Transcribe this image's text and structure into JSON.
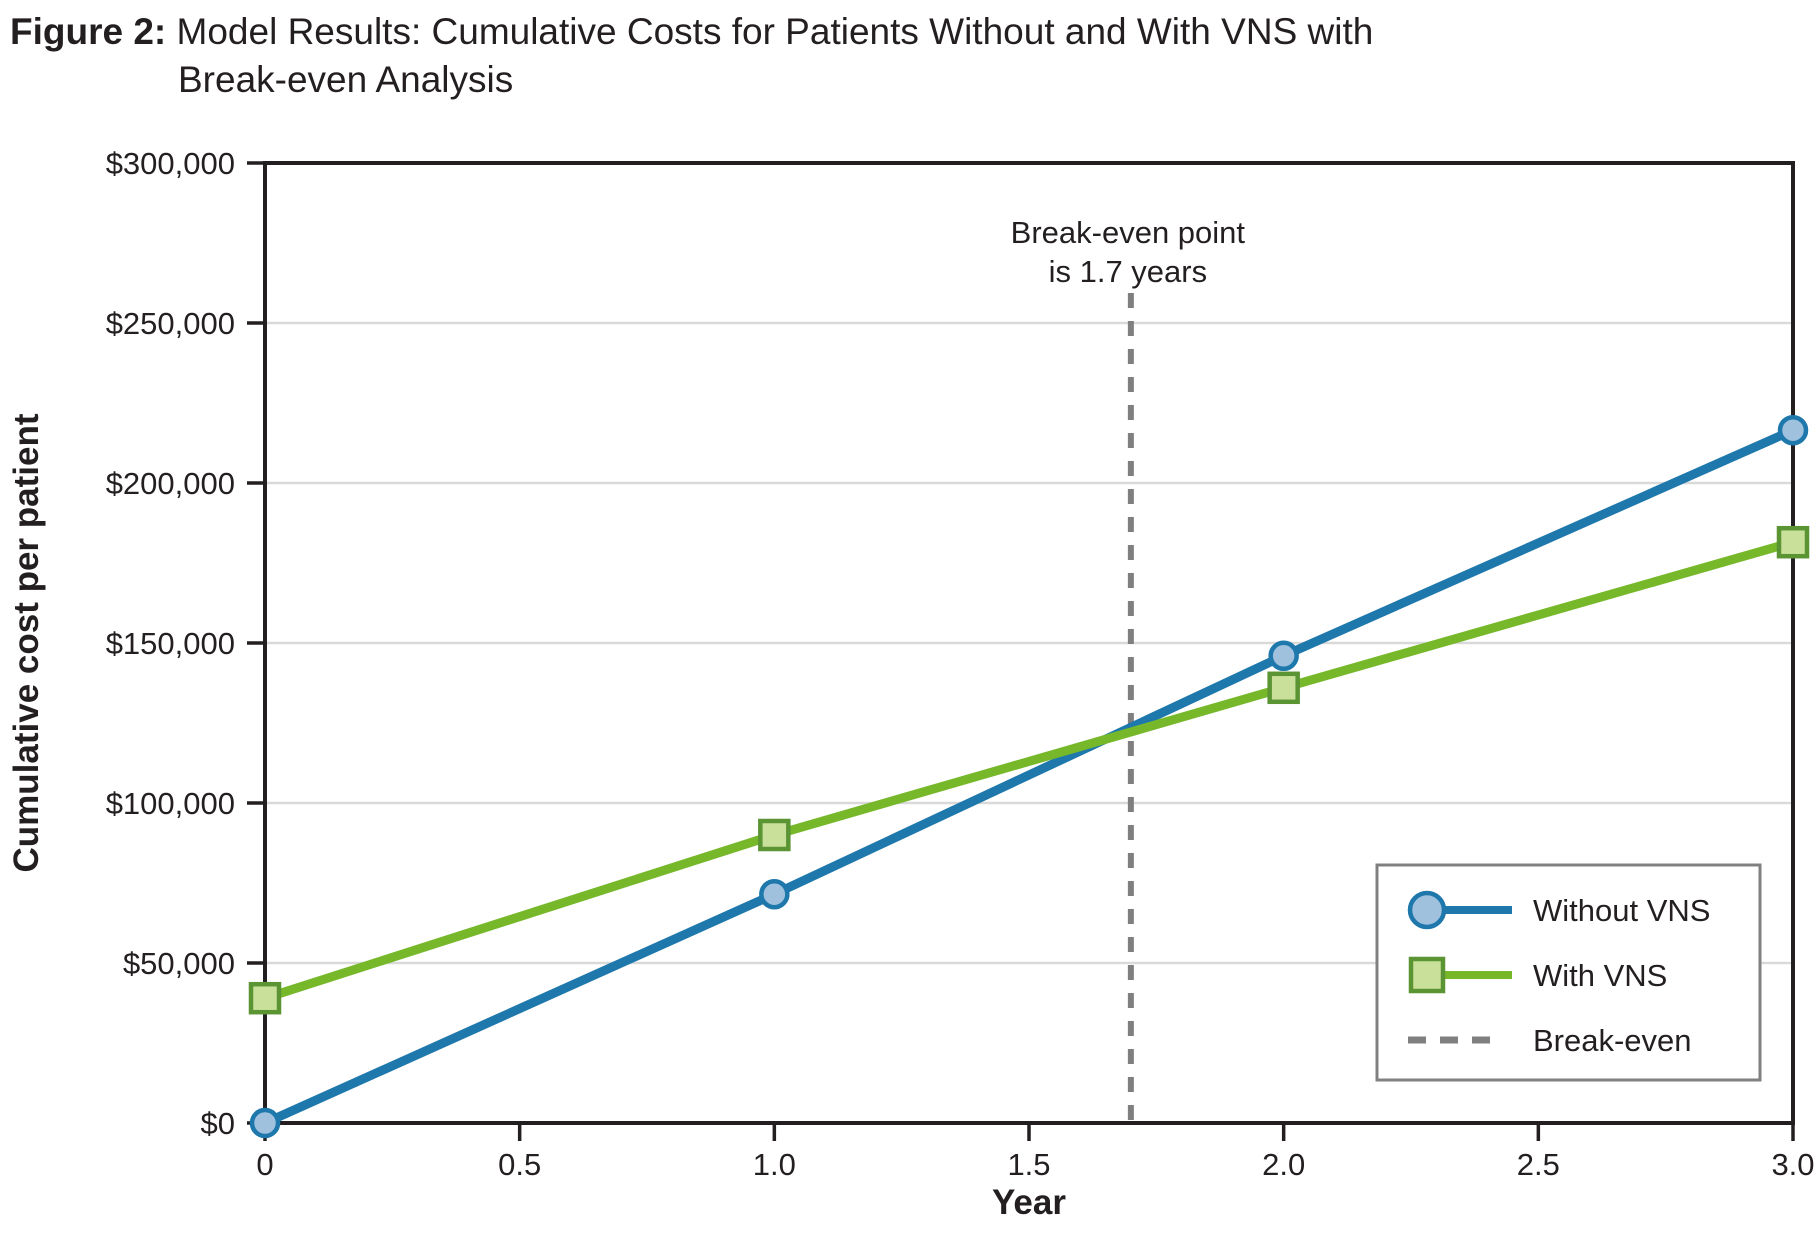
{
  "figure": {
    "label": "Figure 2:",
    "title_line1_rest": " Model Results: Cumulative Costs for Patients Without and With VNS with",
    "title_line2": "Break-even Analysis"
  },
  "chart_data": {
    "type": "line",
    "title": "Model Results: Cumulative Costs for Patients Without and With VNS with Break-even Analysis",
    "xlabel": "Year",
    "ylabel": "Cumulative cost per patient",
    "x": [
      0,
      1,
      2,
      3
    ],
    "series": [
      {
        "name": "Without VNS",
        "values": [
          0,
          71500,
          146000,
          216500
        ],
        "color": "#1E78AC",
        "marker": "circle",
        "marker_fill": "#9FC1DE",
        "marker_stroke": "#1E78AC"
      },
      {
        "name": "With VNS",
        "values": [
          39000,
          90000,
          136000,
          181500
        ],
        "color": "#76B82A",
        "marker": "square",
        "marker_fill": "#C9E09A",
        "marker_stroke": "#5A9433"
      }
    ],
    "xlim": [
      0,
      3
    ],
    "ylim": [
      0,
      300000
    ],
    "x_ticks": [
      0,
      0.5,
      1,
      1.5,
      2,
      2.5,
      3
    ],
    "x_tick_labels": [
      "0",
      "0.5",
      "1.0",
      "1.5",
      "2.0",
      "2.5",
      "3.0"
    ],
    "y_ticks": [
      0,
      50000,
      100000,
      150000,
      200000,
      250000,
      300000
    ],
    "y_tick_labels": [
      "$0",
      "$50,000",
      "$100,000",
      "$150,000",
      "$200,000",
      "$250,000",
      "$300,000"
    ],
    "grid": "horizontal-only",
    "legend_position": "lower-right",
    "annotation": {
      "line1": "Break-even point",
      "line2": "is 1.7 years"
    },
    "break_even": {
      "x": 1.7,
      "label": "Break-even",
      "color": "#7F7F7F"
    }
  },
  "colors": {
    "text": "#231F20",
    "frame": "#231F20",
    "gridline": "#D9D9D9",
    "legend_border": "#808080",
    "without_vns": "#1E78AC",
    "with_vns": "#76B82A",
    "break_even": "#7F7F7F"
  }
}
